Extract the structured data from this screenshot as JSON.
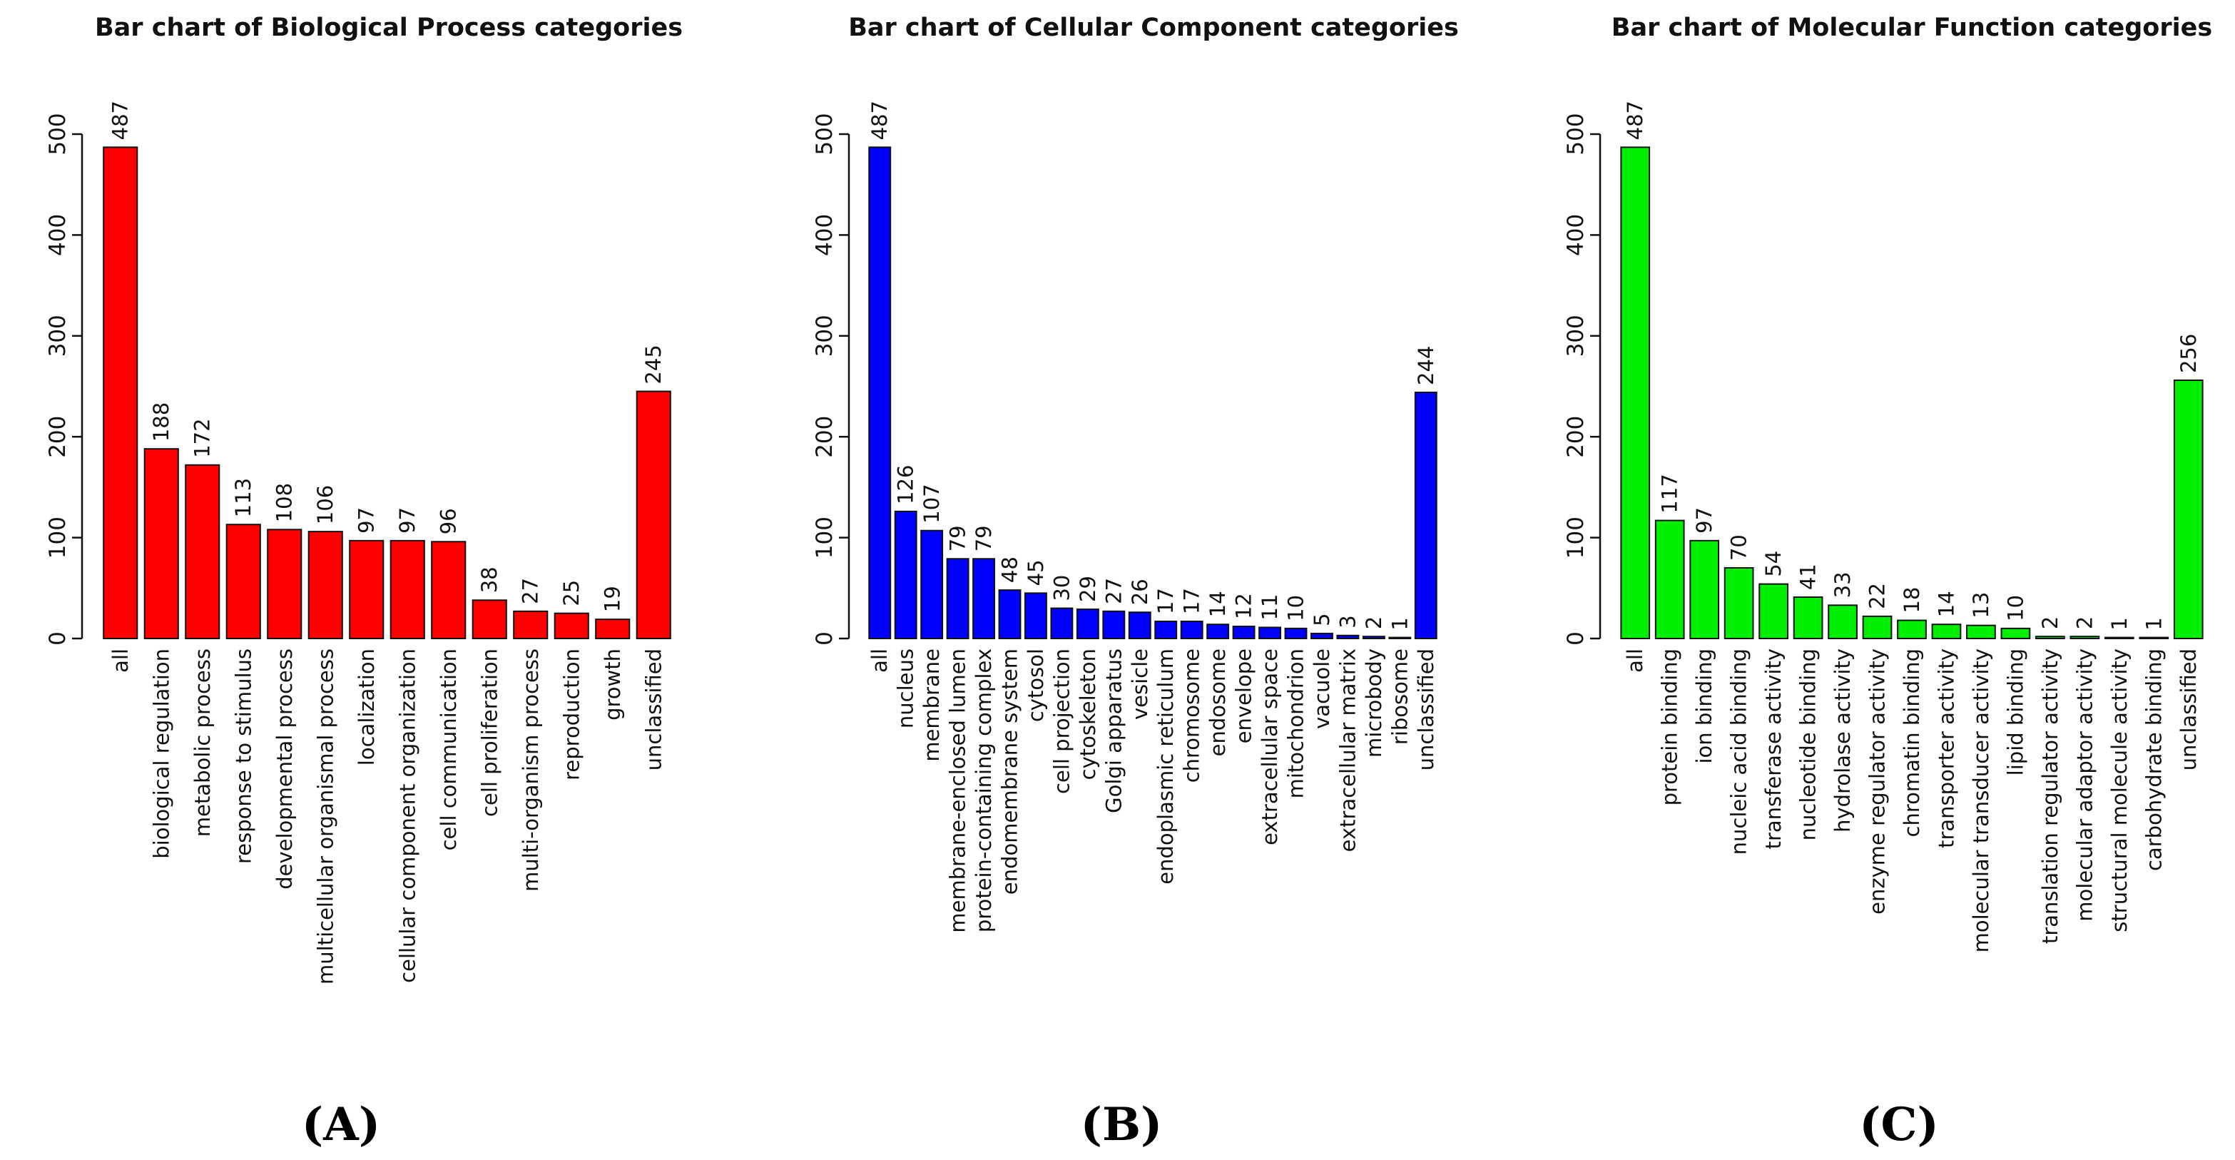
{
  "chart_data": [
    {
      "type": "bar",
      "panel_label": "(A)",
      "title": "Bar chart of Biological Process categories",
      "bar_color": "#ff0000",
      "ylim": [
        0,
        500
      ],
      "yticks": [
        0,
        100,
        200,
        300,
        400,
        500
      ],
      "categories": [
        "all",
        "biological regulation",
        "metabolic process",
        "response to stimulus",
        "developmental process",
        "multicellular organismal process",
        "localization",
        "cellular component organization",
        "cell communication",
        "cell proliferation",
        "multi-organism process",
        "reproduction",
        "growth",
        "unclassified"
      ],
      "values": [
        487,
        188,
        172,
        113,
        108,
        106,
        97,
        97,
        96,
        38,
        27,
        25,
        19,
        245
      ]
    },
    {
      "type": "bar",
      "panel_label": "(B)",
      "title": "Bar chart of Cellular Component categories",
      "bar_color": "#0000ff",
      "ylim": [
        0,
        500
      ],
      "yticks": [
        0,
        100,
        200,
        300,
        400,
        500
      ],
      "categories": [
        "all",
        "nucleus",
        "membrane",
        "membrane-enclosed lumen",
        "protein-containing complex",
        "endomembrane system",
        "cytosol",
        "cell projection",
        "cytoskeleton",
        "Golgi apparatus",
        "vesicle",
        "endoplasmic reticulum",
        "chromosome",
        "endosome",
        "envelope",
        "extracellular space",
        "mitochondrion",
        "vacuole",
        "extracellular matrix",
        "microbody",
        "ribosome",
        "unclassified"
      ],
      "values": [
        487,
        126,
        107,
        79,
        79,
        48,
        45,
        30,
        29,
        27,
        26,
        17,
        17,
        14,
        12,
        11,
        10,
        5,
        3,
        2,
        1,
        244
      ]
    },
    {
      "type": "bar",
      "panel_label": "(C)",
      "title": "Bar chart of Molecular Function categories",
      "bar_color": "#00ee00",
      "ylim": [
        0,
        500
      ],
      "yticks": [
        0,
        100,
        200,
        300,
        400,
        500
      ],
      "categories": [
        "all",
        "protein binding",
        "ion binding",
        "nucleic acid binding",
        "transferase activity",
        "nucleotide binding",
        "hydrolase activity",
        "enzyme regulator activity",
        "chromatin binding",
        "transporter activity",
        "molecular transducer activity",
        "lipid binding",
        "translation regulator activity",
        "molecular adaptor activity",
        "structural molecule activity",
        "carbohydrate binding",
        "unclassified"
      ],
      "values": [
        487,
        117,
        97,
        70,
        54,
        41,
        33,
        22,
        18,
        14,
        13,
        10,
        2,
        2,
        1,
        1,
        256
      ]
    }
  ]
}
